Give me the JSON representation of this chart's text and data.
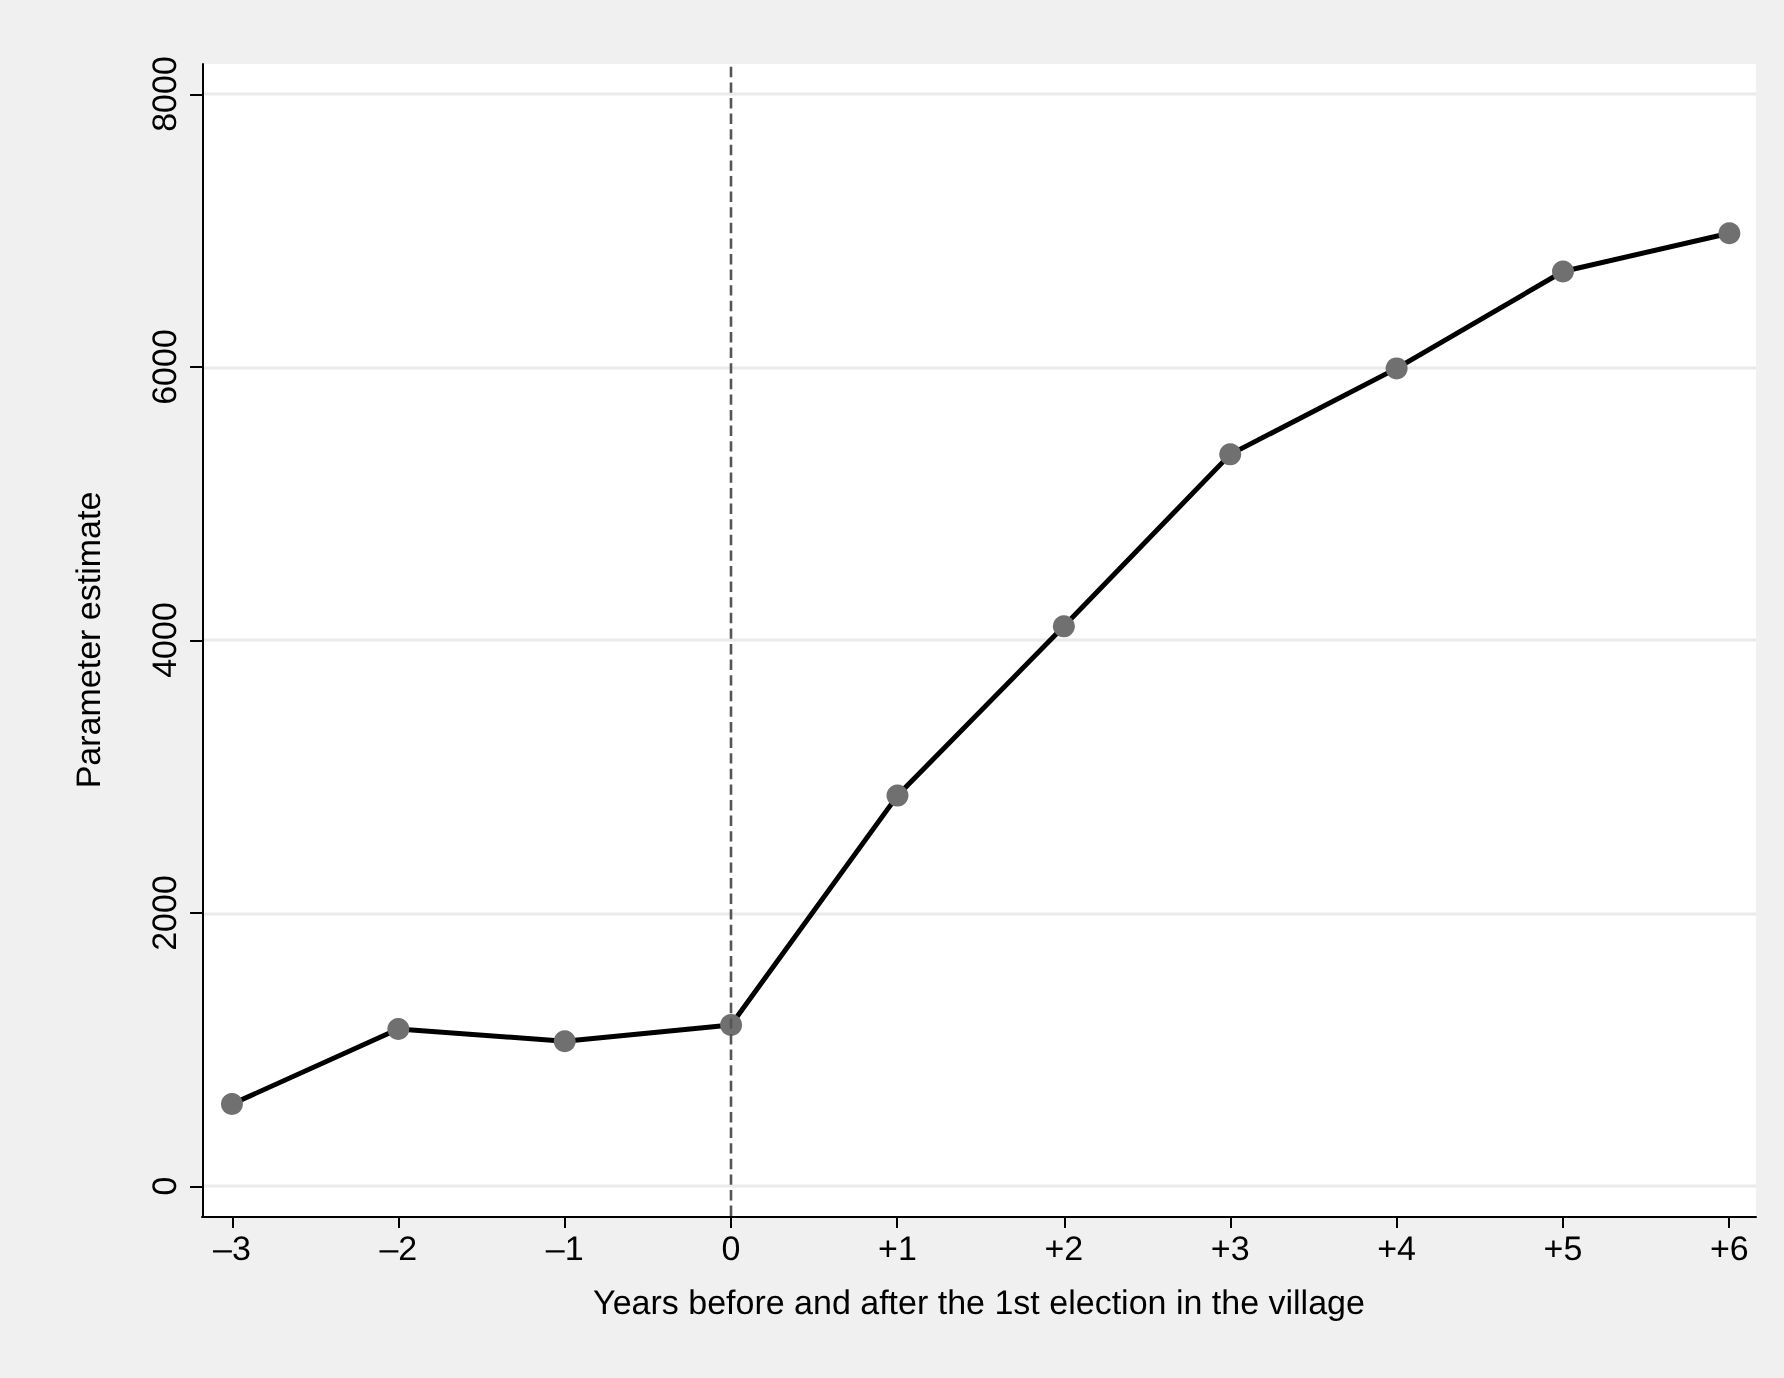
{
  "chart_data": {
    "type": "line",
    "xlabel": "Years before and after the 1st election in the village",
    "ylabel": "Parameter estimate",
    "x": [
      -3,
      -2,
      -1,
      0,
      1,
      2,
      3,
      4,
      5,
      6
    ],
    "series": [
      {
        "color": "#000000",
        "values": [
          600,
          1150,
          1060,
          1180,
          2860,
          4100,
          5360,
          5990,
          6700,
          6980
        ]
      }
    ],
    "xlim": [
      -3.18,
      6.16
    ],
    "xticks": [
      {
        "value": -3,
        "label": "–3"
      },
      {
        "value": -2,
        "label": "–2"
      },
      {
        "value": -1,
        "label": "–1"
      },
      {
        "value": 0,
        "label": "0"
      },
      {
        "value": 1,
        "label": "+1"
      },
      {
        "value": 2,
        "label": "+2"
      },
      {
        "value": 3,
        "label": "+3"
      },
      {
        "value": 4,
        "label": "+4"
      },
      {
        "value": 5,
        "label": "+5"
      },
      {
        "value": 6,
        "label": "+6"
      }
    ],
    "ylim": [
      -220,
      8220
    ],
    "yticks": [
      0,
      2000,
      4000,
      6000,
      8000
    ],
    "ref_lines": [
      {
        "axis": "x",
        "value": 0,
        "color": "#555555",
        "line_style": "dashed"
      }
    ],
    "grid": "y",
    "marker": "circle",
    "line_style": "solid"
  }
}
